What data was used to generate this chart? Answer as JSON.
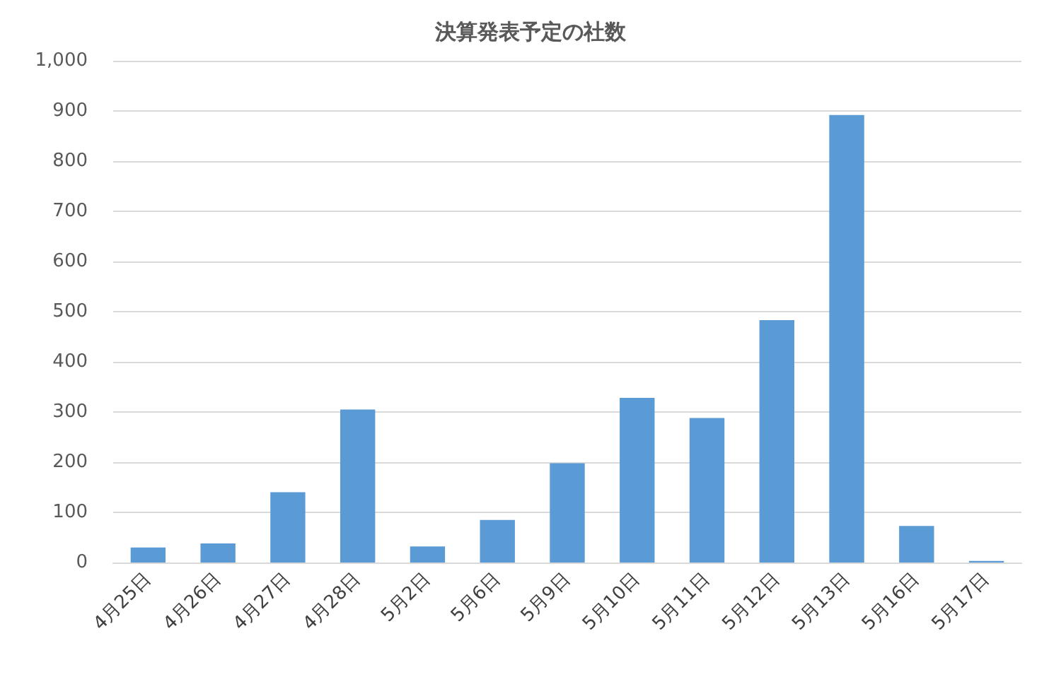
{
  "chart_data": {
    "type": "bar",
    "title": "決算発表予定の社数",
    "categories": [
      "4月25日",
      "4月26日",
      "4月27日",
      "4月28日",
      "5月2日",
      "5月6日",
      "5月9日",
      "5月10日",
      "5月11日",
      "5月12日",
      "5月13日",
      "5月16日",
      "5月17日"
    ],
    "values": [
      30,
      38,
      140,
      305,
      32,
      85,
      198,
      328,
      288,
      483,
      892,
      73,
      3
    ],
    "color": "#5b9bd5",
    "ylim": [
      0,
      1000
    ],
    "yticks": [
      {
        "value": 0,
        "label": "0"
      },
      {
        "value": 100,
        "label": "100"
      },
      {
        "value": 200,
        "label": "200"
      },
      {
        "value": 300,
        "label": "300"
      },
      {
        "value": 400,
        "label": "400"
      },
      {
        "value": 500,
        "label": "500"
      },
      {
        "value": 600,
        "label": "600"
      },
      {
        "value": 700,
        "label": "700"
      },
      {
        "value": 800,
        "label": "800"
      },
      {
        "value": 900,
        "label": "900"
      },
      {
        "value": 1000,
        "label": "1,000"
      }
    ],
    "grid": true
  }
}
